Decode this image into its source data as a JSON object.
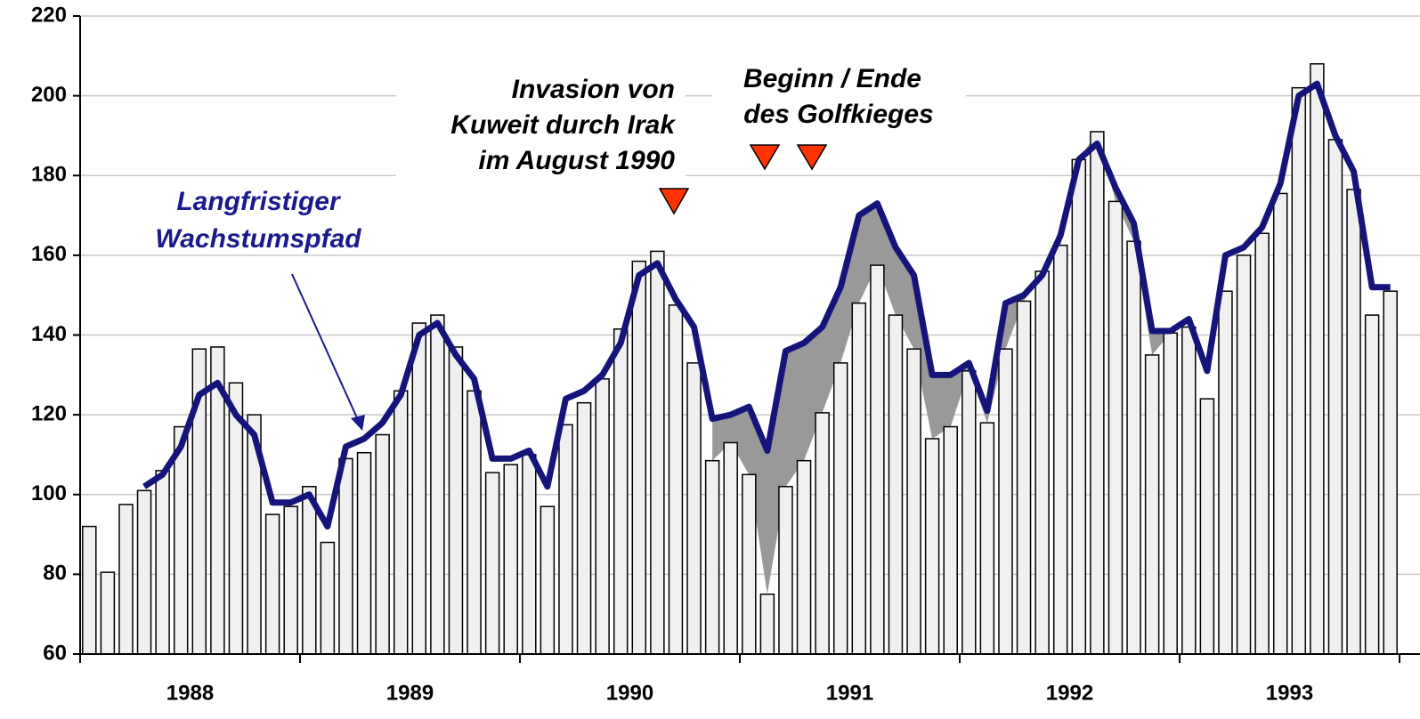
{
  "chart_data": {
    "type": "bar",
    "categories": [
      null,
      null,
      null,
      null,
      null,
      "1988",
      null,
      null,
      null,
      null,
      null,
      null,
      null,
      null,
      null,
      null,
      null,
      "1989",
      null,
      null,
      null,
      null,
      null,
      null,
      null,
      null,
      null,
      null,
      null,
      "1990",
      null,
      null,
      null,
      null,
      null,
      null,
      null,
      null,
      null,
      null,
      null,
      "1991",
      null,
      null,
      null,
      null,
      null,
      null,
      null,
      null,
      null,
      null,
      null,
      "1992",
      null,
      null,
      null,
      null,
      null,
      null,
      null,
      null,
      null,
      null,
      null,
      "1993",
      null,
      null,
      null,
      null,
      null,
      null
    ],
    "series": [
      {
        "type": "bar",
        "color": "#f0f0f0",
        "values": [
          92,
          80.5,
          97.5,
          101,
          106,
          117,
          136.5,
          137,
          128,
          120,
          95,
          97,
          102,
          88,
          109,
          110.5,
          115,
          126,
          143,
          145,
          137,
          126,
          105.5,
          107.5,
          110,
          97,
          117.5,
          123,
          129,
          141.5,
          158.5,
          161,
          147.5,
          133,
          108.5,
          113,
          105,
          75,
          102,
          108.5,
          120.5,
          133,
          148,
          157.5,
          145,
          136.5,
          114,
          117,
          131,
          118,
          136.5,
          148.5,
          156,
          162.5,
          184,
          191,
          173.5,
          163.5,
          135,
          140.5,
          142,
          124,
          151,
          160,
          165.5,
          175.5,
          202,
          208,
          189,
          176.5,
          145,
          151
        ]
      },
      {
        "type": "line",
        "color": "#14147a",
        "values": [
          null,
          null,
          null,
          102,
          105,
          112,
          125,
          128,
          120,
          115,
          98,
          98,
          100,
          92,
          112,
          114,
          118,
          125,
          140,
          143,
          135,
          129,
          109,
          109,
          111,
          102,
          124,
          126,
          130,
          138,
          155,
          158,
          149,
          142,
          119,
          120,
          122,
          111,
          136,
          138,
          142,
          152,
          170,
          173,
          162,
          155,
          130,
          130,
          133,
          121,
          148,
          150,
          155,
          165,
          184,
          188,
          177,
          168,
          141,
          141,
          144,
          131,
          160,
          162,
          167,
          178,
          200,
          203,
          190,
          181,
          152,
          152
        ]
      }
    ],
    "ylim": [
      60,
      220
    ],
    "yticks": [
      60,
      80,
      100,
      120,
      140,
      160,
      180,
      200,
      220
    ],
    "grid": true,
    "annotations": [
      {
        "lines": [
          "Langfristiger",
          "Wachstumspfad"
        ]
      },
      {
        "lines": [
          "Invasion von",
          "Kuweit durch Irak",
          "im August 1990"
        ]
      },
      {
        "lines": [
          "Beginn / Ende",
          "des Golfkieges"
        ]
      }
    ]
  }
}
